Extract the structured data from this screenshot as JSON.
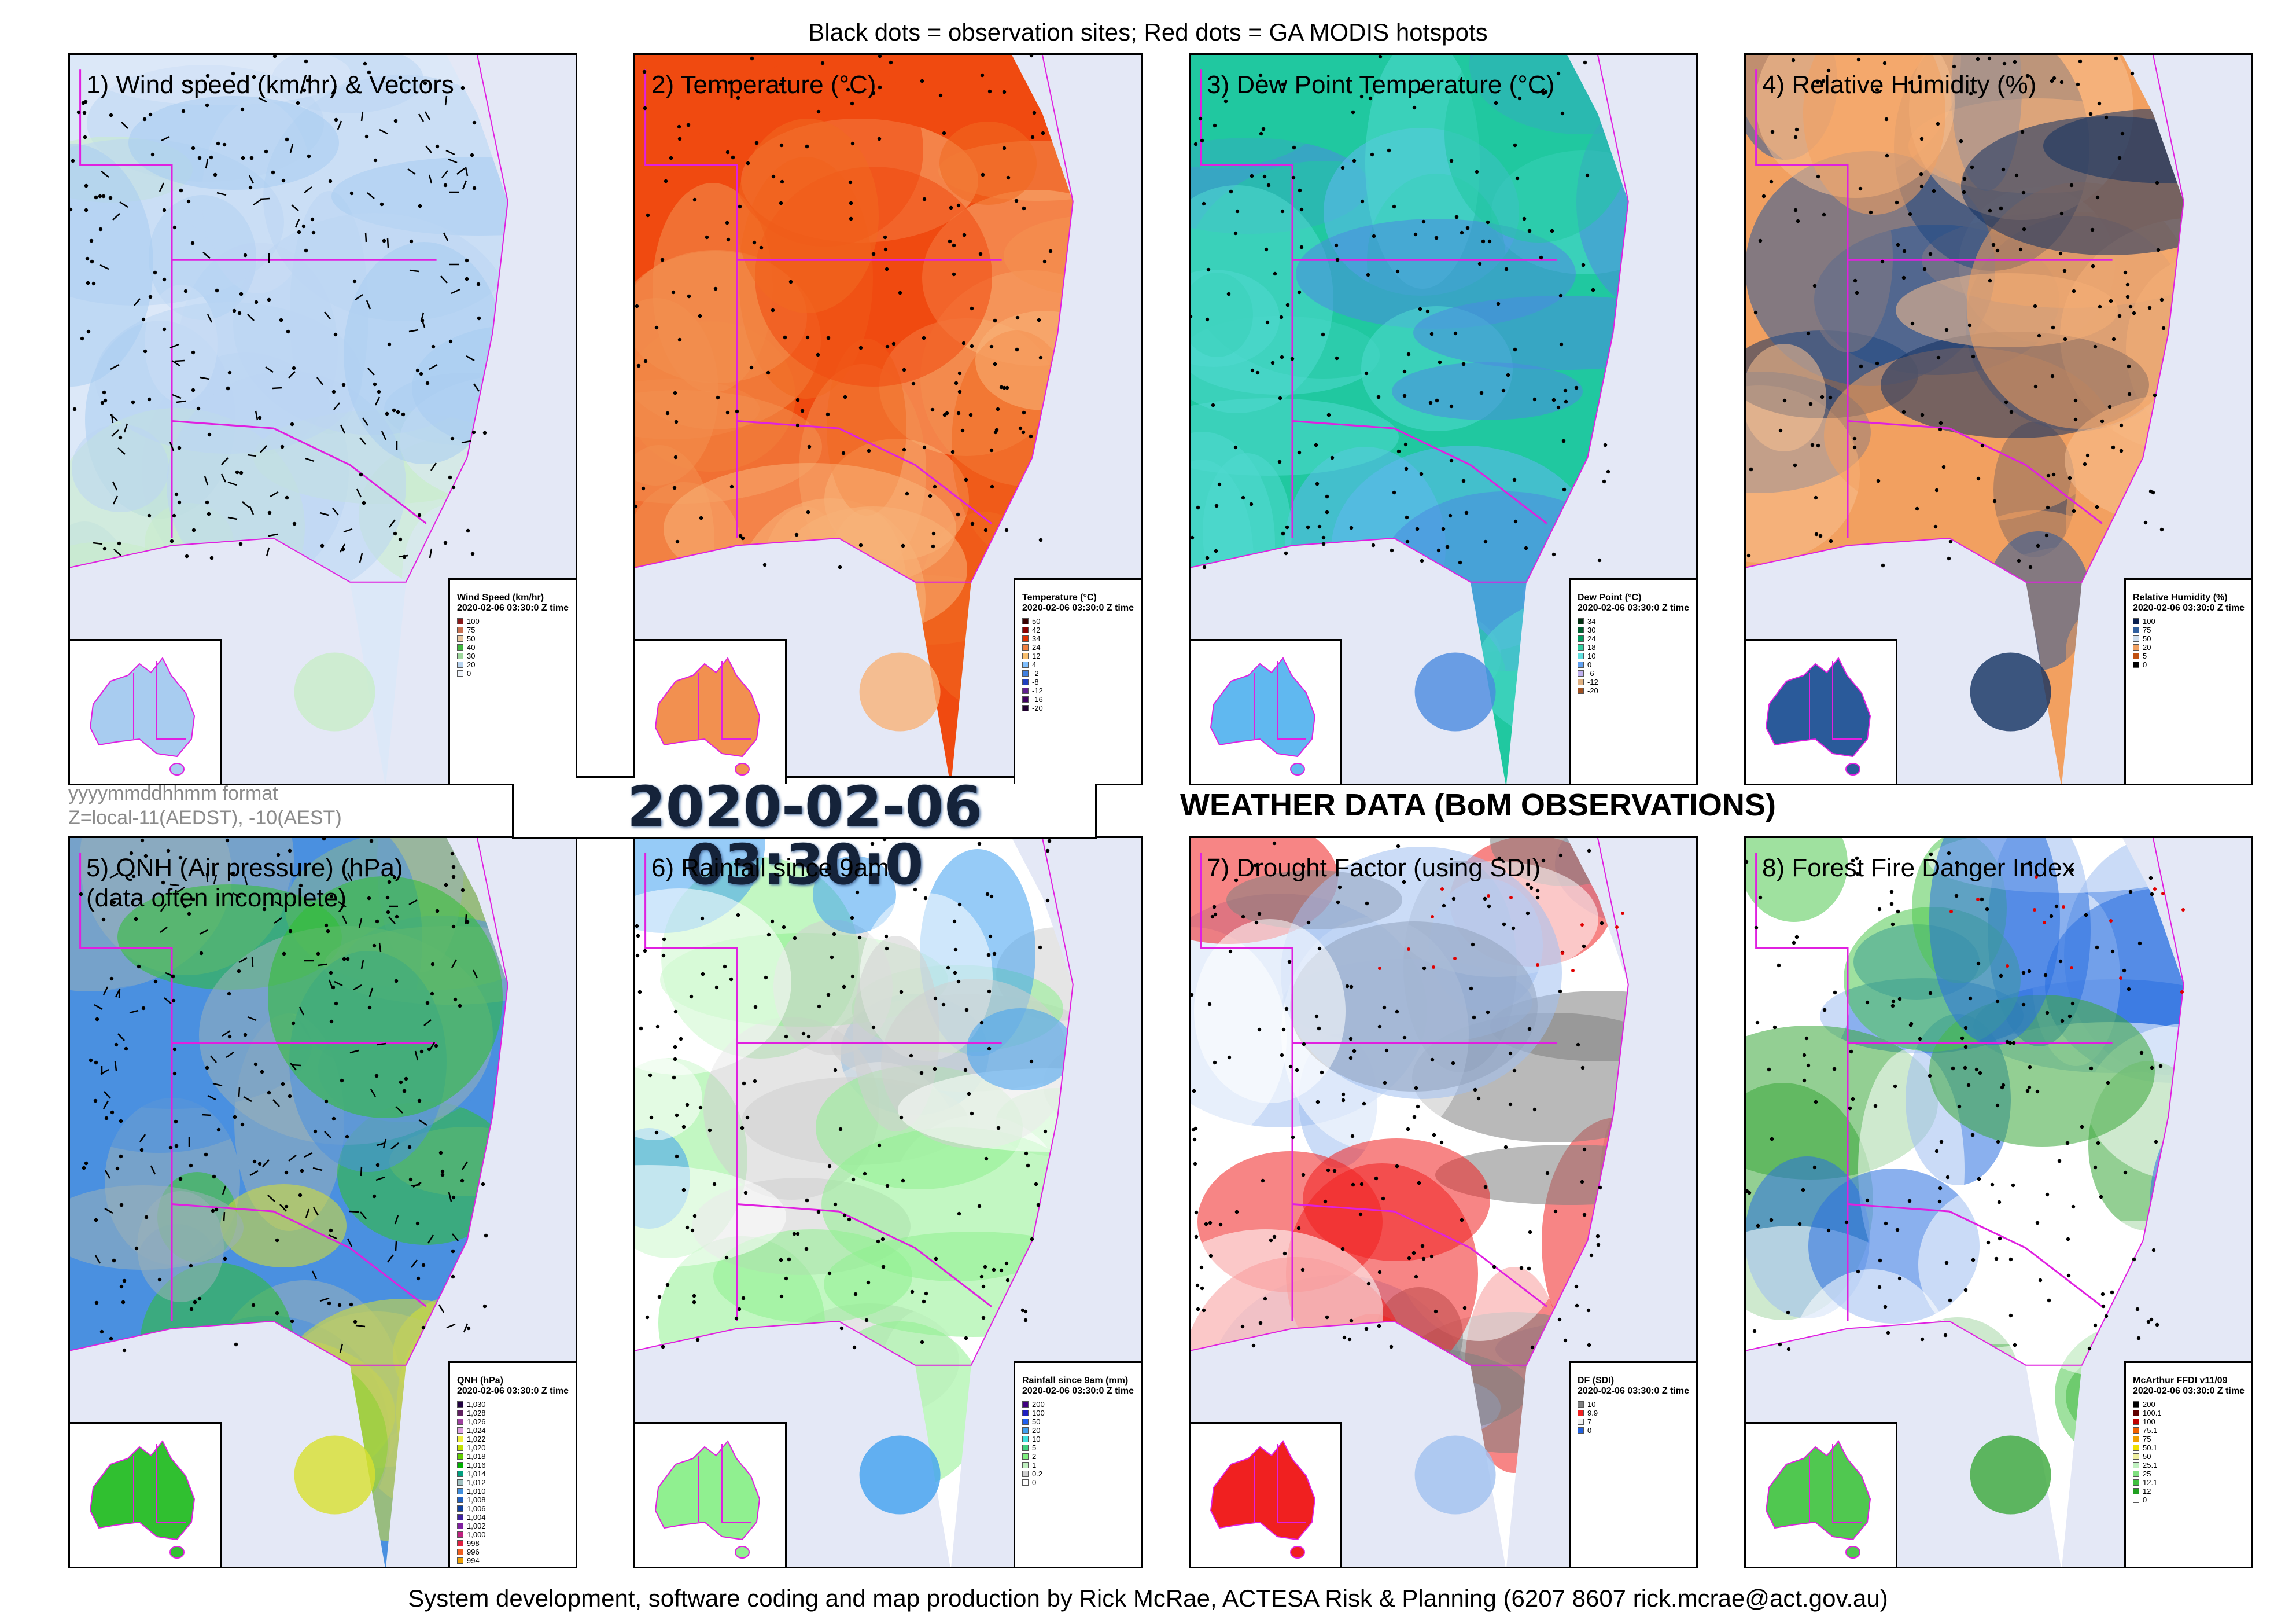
{
  "header_note": "Black dots = observation sites; Red dots = GA MODIS hotspots",
  "footer": "System development, software coding and map production by Rick McRae, ACTESA Risk & Planning (6207 8607 rick.mcrae@act.gov.au)",
  "date_display": "2020-02-06 03:30:0",
  "format_note": {
    "line1": "yyyymmddhhmm format",
    "line2": "Z=local-11(AEDST), -10(AEST)"
  },
  "section_title": "WEATHER DATA (BoM OBSERVATIONS)",
  "panels": [
    {
      "title": "1) Wind speed (km/hr) & Vectors",
      "legend_title": "Wind Speed (km/hr)",
      "legend_time": "2020-02-06 03:30:0 Z time",
      "legend_items": [
        {
          "label": "100",
          "color": "#8b1a1a"
        },
        {
          "label": "75",
          "color": "#c87050"
        },
        {
          "label": "50",
          "color": "#e8c8a0"
        },
        {
          "label": "40",
          "color": "#3db83d"
        },
        {
          "label": "30",
          "color": "#9ed89e"
        },
        {
          "label": "20",
          "color": "#b8d4f0"
        },
        {
          "label": "0",
          "color": "#eef3fb"
        }
      ],
      "palette": [
        "#dce8f8",
        "#bcd5f2",
        "#a8ccf0",
        "#c8ecc8"
      ]
    },
    {
      "title": "2) Temperature (°C)",
      "legend_title": "Temperature (°C)",
      "legend_time": "2020-02-06 03:30:0 Z time",
      "legend_items": [
        {
          "label": "50",
          "color": "#3a0000"
        },
        {
          "label": "42",
          "color": "#8b0000"
        },
        {
          "label": "34",
          "color": "#e03000"
        },
        {
          "label": "24",
          "color": "#f08040"
        },
        {
          "label": "12",
          "color": "#f8c070"
        },
        {
          "label": "4",
          "color": "#80c0ff"
        },
        {
          "label": "-2",
          "color": "#4080e0"
        },
        {
          "label": "-8",
          "color": "#2040c0"
        },
        {
          "label": "-12",
          "color": "#602090"
        },
        {
          "label": "-16",
          "color": "#400060"
        },
        {
          "label": "-20",
          "color": "#200030"
        }
      ],
      "palette": [
        "#f04a10",
        "#f06a20",
        "#f29050",
        "#f7b278"
      ]
    },
    {
      "title": "3) Dew Point Temperature (°C)",
      "legend_title": "Dew Point (°C)",
      "legend_time": "2020-02-06 03:30:0 Z time",
      "legend_items": [
        {
          "label": "34",
          "color": "#003010"
        },
        {
          "label": "30",
          "color": "#006030"
        },
        {
          "label": "24",
          "color": "#00a060"
        },
        {
          "label": "18",
          "color": "#30d0a0"
        },
        {
          "label": "10",
          "color": "#60e0e0"
        },
        {
          "label": "0",
          "color": "#60a0f0"
        },
        {
          "label": "-6",
          "color": "#c0b0f0"
        },
        {
          "label": "-12",
          "color": "#e0b080"
        },
        {
          "label": "-20",
          "color": "#a05020"
        }
      ],
      "palette": [
        "#20c8a0",
        "#50d8d0",
        "#60b8f0",
        "#4a8ae0"
      ]
    },
    {
      "title": "4) Relative Humidity (%)",
      "legend_title": "Relative Humidity (%)",
      "legend_time": "2020-02-06 03:30:0 Z time",
      "legend_items": [
        {
          "label": "100",
          "color": "#0a2050"
        },
        {
          "label": "75",
          "color": "#3060a0"
        },
        {
          "label": "50",
          "color": "#d0e0f0"
        },
        {
          "label": "20",
          "color": "#f0a060"
        },
        {
          "label": "5",
          "color": "#c05010"
        },
        {
          "label": "0",
          "color": "#000000"
        }
      ],
      "palette": [
        "#f2a060",
        "#f7c090",
        "#2a5a9a",
        "#103060"
      ]
    },
    {
      "title": "5) QNH (Air pressure) (hPa)\n(data often incomplete)",
      "legend_title": "QNH (hPa)",
      "legend_time": "2020-02-06 03:30:0 Z time",
      "legend_items": [
        {
          "label": "1,030",
          "color": "#200040"
        },
        {
          "label": "1,028",
          "color": "#602060"
        },
        {
          "label": "1,026",
          "color": "#a040a0"
        },
        {
          "label": "1,024",
          "color": "#e0a0e0"
        },
        {
          "label": "1,022",
          "color": "#f0f040"
        },
        {
          "label": "1,020",
          "color": "#c0e000"
        },
        {
          "label": "1,018",
          "color": "#60d000"
        },
        {
          "label": "1,016",
          "color": "#00b000"
        },
        {
          "label": "1,014",
          "color": "#00a080"
        },
        {
          "label": "1,012",
          "color": "#a0c0c0"
        },
        {
          "label": "1,010",
          "color": "#4090e0"
        },
        {
          "label": "1,008",
          "color": "#2060c0"
        },
        {
          "label": "1,006",
          "color": "#1040a0"
        },
        {
          "label": "1,004",
          "color": "#4020a0"
        },
        {
          "label": "1,002",
          "color": "#8020a0"
        },
        {
          "label": "1,000",
          "color": "#c02080"
        },
        {
          "label": "998",
          "color": "#e02040"
        },
        {
          "label": "996",
          "color": "#f06020"
        },
        {
          "label": "994",
          "color": "#f0a000"
        }
      ],
      "palette": [
        "#4a90e0",
        "#9ab0b8",
        "#30c030",
        "#d8e030"
      ]
    },
    {
      "title": "6) Rainfall since 9am",
      "legend_title": "Rainfall since 9am (mm)",
      "legend_time": "2020-02-06 03:30:0 Z time",
      "legend_items": [
        {
          "label": "200",
          "color": "#400080"
        },
        {
          "label": "100",
          "color": "#2020c0"
        },
        {
          "label": "50",
          "color": "#2060f0"
        },
        {
          "label": "20",
          "color": "#40a0f0"
        },
        {
          "label": "10",
          "color": "#40e0e0"
        },
        {
          "label": "5",
          "color": "#40d080"
        },
        {
          "label": "2",
          "color": "#80f080"
        },
        {
          "label": "1",
          "color": "#c0f0c0"
        },
        {
          "label": "0.2",
          "color": "#d0d0d0"
        },
        {
          "label": "0",
          "color": "#ffffff"
        }
      ],
      "palette": [
        "#ffffff",
        "#d0d0d0",
        "#90f090",
        "#40a0f0"
      ]
    },
    {
      "title": "7) Drought Factor (using SDI)",
      "legend_title": "DF (SDI)",
      "legend_time": "2020-02-06 03:30:0 Z time",
      "legend_items": [
        {
          "label": "10",
          "color": "#808080"
        },
        {
          "label": "9.9",
          "color": "#f02020"
        },
        {
          "label": "7",
          "color": "#f0f0f0"
        },
        {
          "label": "0",
          "color": "#2060e0"
        }
      ],
      "palette": [
        "#ffffff",
        "#808080",
        "#f02020",
        "#a0c0f0"
      ]
    },
    {
      "title": "8) Forest Fire Danger Index",
      "legend_title": "McArthur FFDI v11/09",
      "legend_time": "2020-02-06 03:30:0 Z time",
      "legend_items": [
        {
          "label": "200",
          "color": "#000000"
        },
        {
          "label": "100.1",
          "color": "#600000"
        },
        {
          "label": "100",
          "color": "#c00000"
        },
        {
          "label": "75.1",
          "color": "#f06000"
        },
        {
          "label": "75",
          "color": "#f0a000"
        },
        {
          "label": "50.1",
          "color": "#f0e000"
        },
        {
          "label": "50",
          "color": "#f0f0a0"
        },
        {
          "label": "25.1",
          "color": "#c0f0c0"
        },
        {
          "label": "25",
          "color": "#80e080"
        },
        {
          "label": "12.1",
          "color": "#40c040"
        },
        {
          "label": "12",
          "color": "#20a020"
        },
        {
          "label": "0",
          "color": "#ffffff"
        }
      ],
      "palette": [
        "#ffffff",
        "#2a70e0",
        "#50c850",
        "#3aa83a"
      ]
    }
  ]
}
